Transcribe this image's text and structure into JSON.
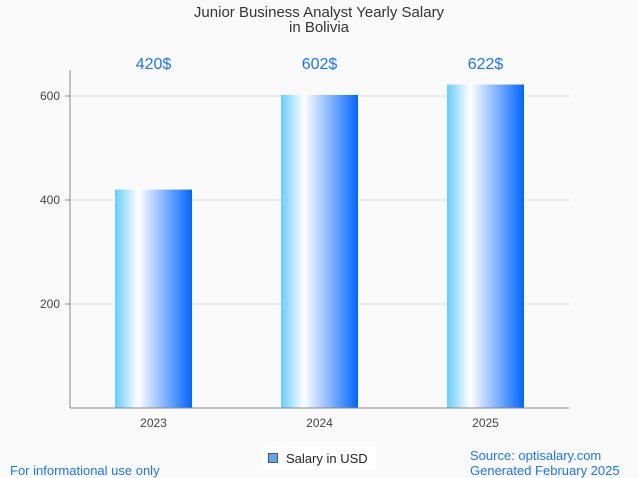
{
  "chart_data": {
    "type": "bar",
    "title": "Junior Business Analyst Yearly Salary",
    "subtitle": "in Bolivia",
    "categories": [
      "2023",
      "2024",
      "2025"
    ],
    "values": [
      420,
      602,
      622
    ],
    "data_labels": [
      "420$",
      "602$",
      "622$"
    ],
    "yticks": [
      200,
      400,
      600
    ],
    "ylim": [
      0,
      650
    ],
    "grid": true,
    "legend": "Salary in USD",
    "legend_position": "bottom",
    "colors": {
      "bar_light": "#66ccff",
      "bar_dark": "#0066ff",
      "label": "#1a75ff"
    }
  },
  "footer": {
    "left": "For informational use only",
    "source": "Source: optisalary.com",
    "generated": "Generated February 2025"
  }
}
